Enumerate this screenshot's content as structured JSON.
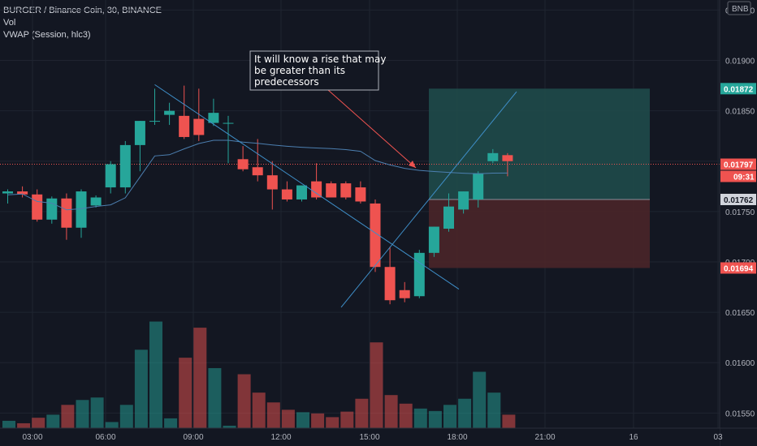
{
  "legend": {
    "symbol_line": "BURGER / Binance Coin, 30, BINANCE",
    "vol_label": "Vol",
    "vwap_label": "VWAP (Session, hlc3)"
  },
  "colors": {
    "background": "#131722",
    "up": "#26a69a",
    "down": "#ef5350",
    "vol_up": "#26a69a",
    "vol_down": "#ef5350",
    "vwap": "#4c7fb0",
    "trendline": "#3f8fc9",
    "grid": "#1f2430",
    "target_zone": "#1f4a4a",
    "stop_zone": "#4a2529"
  },
  "chart_data": {
    "type": "candlestick",
    "y_range": [
      0.01535,
      0.0196
    ],
    "x_ticks": [
      "03:00",
      "06:00",
      "09:00",
      "12:00",
      "15:00",
      "18:00",
      "21:00",
      "16",
      "03"
    ],
    "y_ticks": [
      "0.01950",
      "0.01900",
      "0.01850",
      "0.01800",
      "0.01750",
      "0.01700",
      "0.01650",
      "0.01600",
      "0.01550"
    ],
    "bnb_badge": "BNB",
    "candles": [
      {
        "o": 0.01768,
        "h": 0.01772,
        "l": 0.01758,
        "c": 0.0177,
        "v": 12
      },
      {
        "o": 0.0177,
        "h": 0.01775,
        "l": 0.01764,
        "c": 0.01767,
        "v": 8
      },
      {
        "o": 0.01767,
        "h": 0.01772,
        "l": 0.0174,
        "c": 0.01742,
        "v": 17
      },
      {
        "o": 0.01742,
        "h": 0.01765,
        "l": 0.01738,
        "c": 0.01763,
        "v": 22
      },
      {
        "o": 0.01763,
        "h": 0.01768,
        "l": 0.01722,
        "c": 0.01734,
        "v": 38
      },
      {
        "o": 0.01734,
        "h": 0.01772,
        "l": 0.01724,
        "c": 0.0177,
        "v": 46
      },
      {
        "o": 0.01756,
        "h": 0.01766,
        "l": 0.01754,
        "c": 0.01764,
        "v": 50
      },
      {
        "o": 0.01774,
        "h": 0.018,
        "l": 0.01768,
        "c": 0.01797,
        "v": 10
      },
      {
        "o": 0.01774,
        "h": 0.0182,
        "l": 0.01768,
        "c": 0.01816,
        "v": 38
      },
      {
        "o": 0.01816,
        "h": 0.0184,
        "l": 0.0179,
        "c": 0.0184,
        "v": 128
      },
      {
        "o": 0.0184,
        "h": 0.01872,
        "l": 0.01836,
        "c": 0.0184,
        "v": 174
      },
      {
        "o": 0.01846,
        "h": 0.01858,
        "l": 0.01836,
        "c": 0.0185,
        "v": 16
      },
      {
        "o": 0.01845,
        "h": 0.01875,
        "l": 0.01822,
        "c": 0.01824,
        "v": 115
      },
      {
        "o": 0.01842,
        "h": 0.01872,
        "l": 0.0182,
        "c": 0.01826,
        "v": 164
      },
      {
        "o": 0.01838,
        "h": 0.01862,
        "l": 0.01835,
        "c": 0.01848,
        "v": 98
      },
      {
        "o": 0.01838,
        "h": 0.01845,
        "l": 0.01798,
        "c": 0.01838,
        "v": 4
      },
      {
        "o": 0.01802,
        "h": 0.01815,
        "l": 0.0179,
        "c": 0.01792,
        "v": 88
      },
      {
        "o": 0.01794,
        "h": 0.01822,
        "l": 0.0178,
        "c": 0.01786,
        "v": 58
      },
      {
        "o": 0.01786,
        "h": 0.018,
        "l": 0.01752,
        "c": 0.01772,
        "v": 42
      },
      {
        "o": 0.01772,
        "h": 0.0178,
        "l": 0.0176,
        "c": 0.01762,
        "v": 30
      },
      {
        "o": 0.01762,
        "h": 0.01775,
        "l": 0.0176,
        "c": 0.01776,
        "v": 26
      },
      {
        "o": 0.0178,
        "h": 0.01798,
        "l": 0.01762,
        "c": 0.01764,
        "v": 24
      },
      {
        "o": 0.01778,
        "h": 0.0178,
        "l": 0.01764,
        "c": 0.01764,
        "v": 18
      },
      {
        "o": 0.01778,
        "h": 0.0178,
        "l": 0.01762,
        "c": 0.01764,
        "v": 27
      },
      {
        "o": 0.01774,
        "h": 0.0178,
        "l": 0.01758,
        "c": 0.0176,
        "v": 48
      },
      {
        "o": 0.01758,
        "h": 0.01762,
        "l": 0.0169,
        "c": 0.01695,
        "v": 140
      },
      {
        "o": 0.01695,
        "h": 0.01715,
        "l": 0.01658,
        "c": 0.01662,
        "v": 54
      },
      {
        "o": 0.01672,
        "h": 0.0168,
        "l": 0.0166,
        "c": 0.01664,
        "v": 40
      },
      {
        "o": 0.01666,
        "h": 0.01712,
        "l": 0.01664,
        "c": 0.01709,
        "v": 32
      },
      {
        "o": 0.01709,
        "h": 0.01735,
        "l": 0.01705,
        "c": 0.01735,
        "v": 28
      },
      {
        "o": 0.01733,
        "h": 0.01768,
        "l": 0.0173,
        "c": 0.01755,
        "v": 38
      },
      {
        "o": 0.01752,
        "h": 0.0177,
        "l": 0.01748,
        "c": 0.0177,
        "v": 48
      },
      {
        "o": 0.01762,
        "h": 0.0179,
        "l": 0.01754,
        "c": 0.01788,
        "v": 92
      },
      {
        "o": 0.018,
        "h": 0.01812,
        "l": 0.01798,
        "c": 0.01808,
        "v": 58
      },
      {
        "o": 0.01806,
        "h": 0.01808,
        "l": 0.01785,
        "c": 0.018,
        "v": 22
      }
    ],
    "price_tags": [
      {
        "label": "0.01872",
        "value": 0.01872,
        "kind": "target"
      },
      {
        "label": "0.01797",
        "value": 0.01797,
        "kind": "current"
      },
      {
        "label": "09:31",
        "value": 0.01787,
        "kind": "countdown"
      },
      {
        "label": "0.01762",
        "value": 0.01762,
        "kind": "entry"
      },
      {
        "label": "0.01694",
        "value": 0.01694,
        "kind": "stop"
      }
    ],
    "annotation": {
      "lines": [
        "It will know a rise that may",
        "be greater than its",
        "predecessors"
      ]
    }
  }
}
